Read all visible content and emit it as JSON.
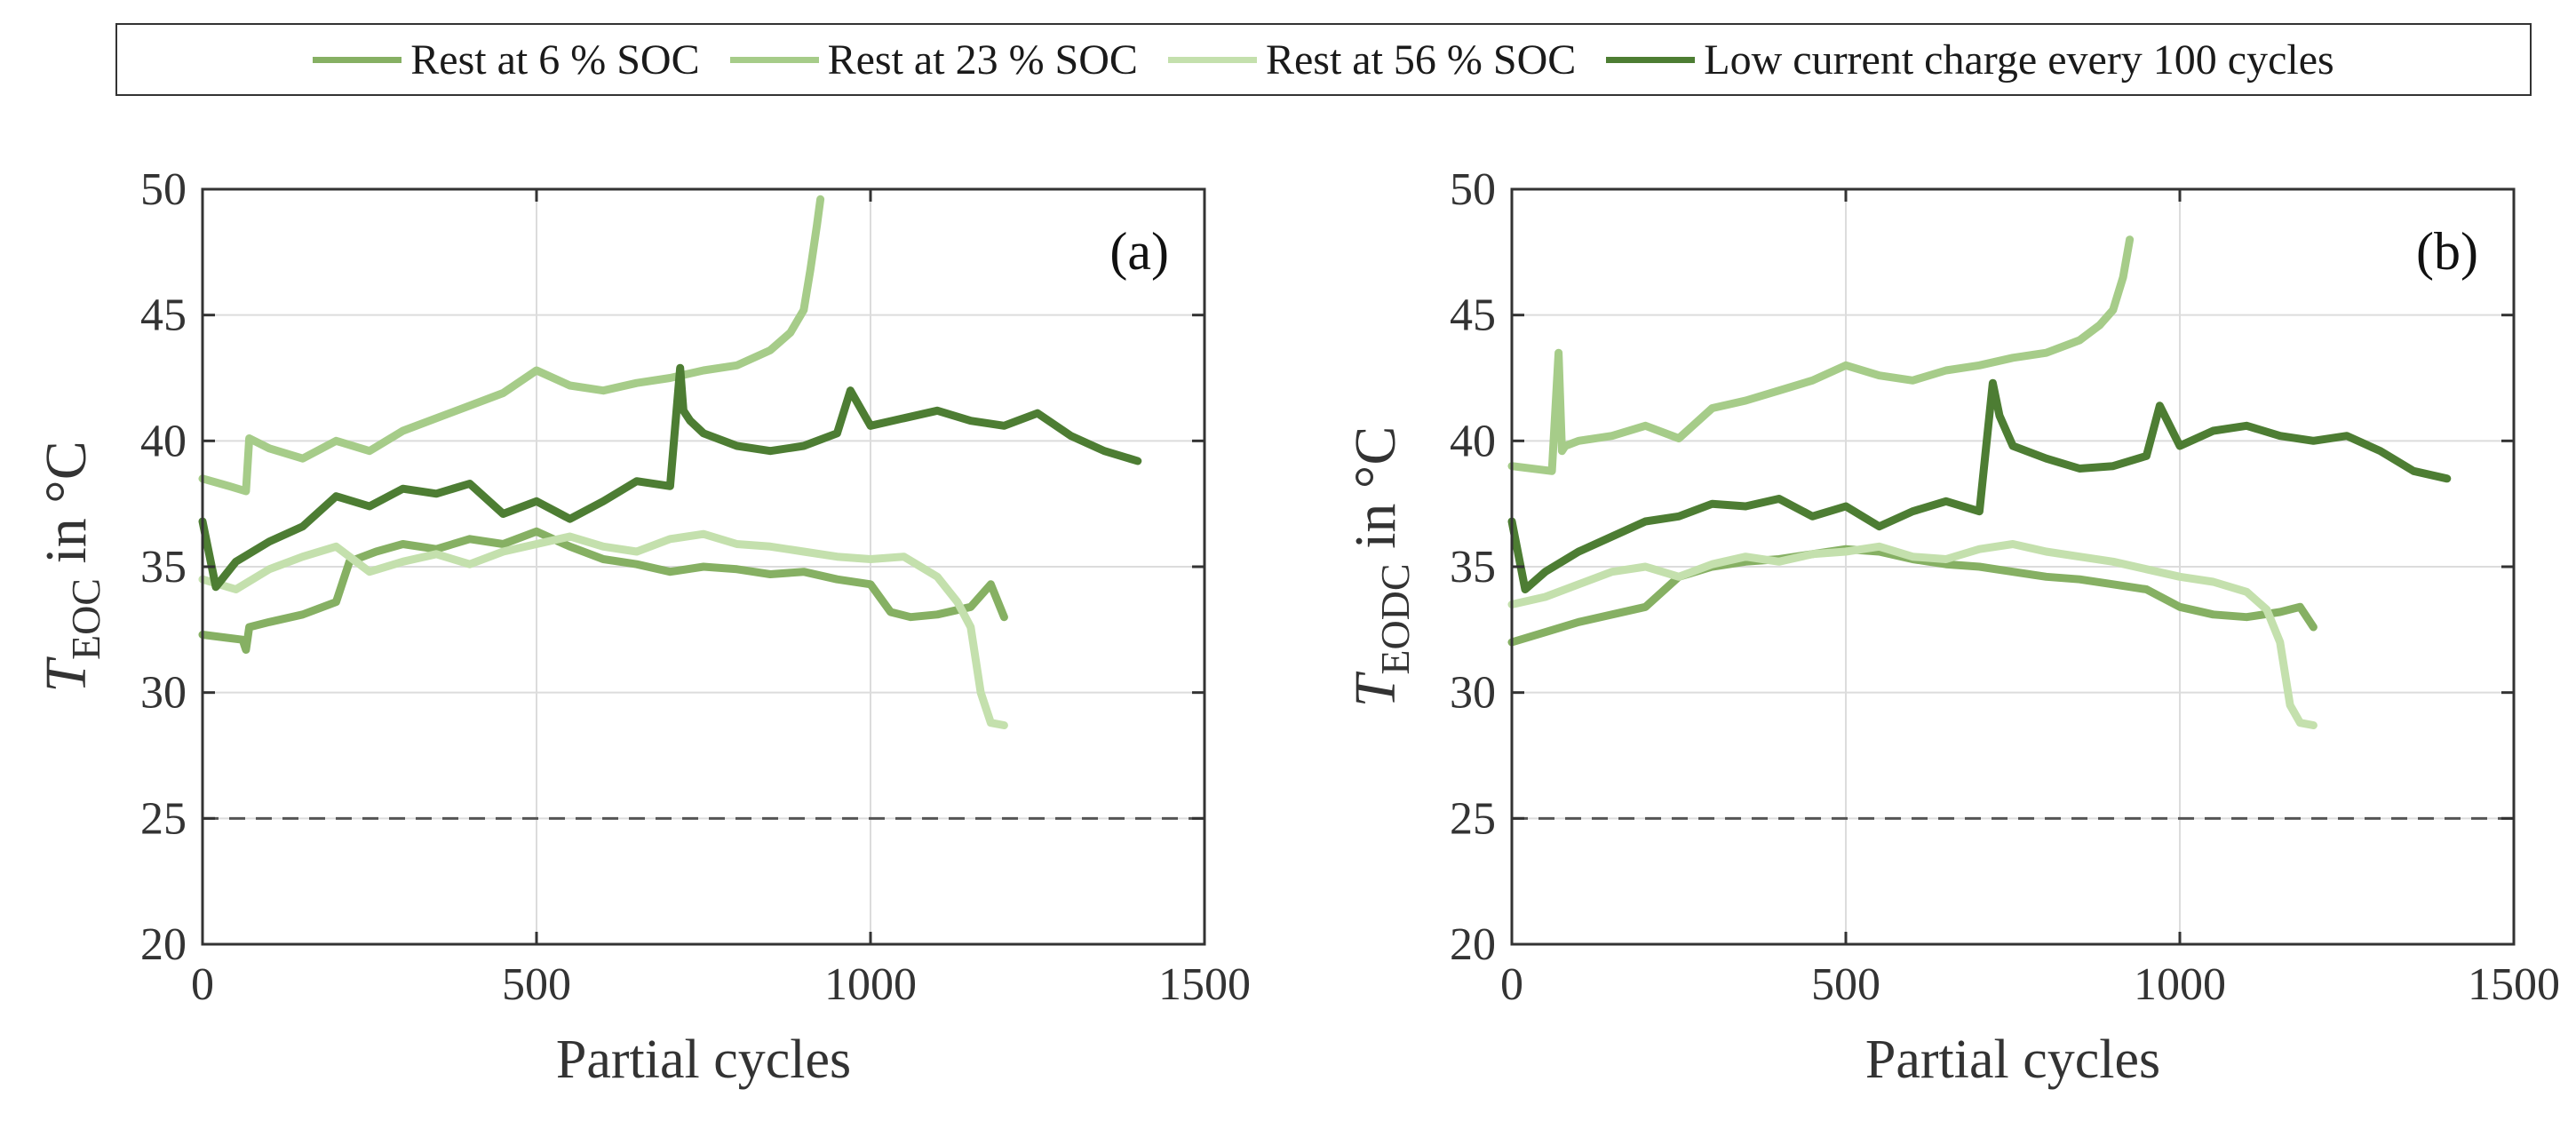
{
  "legend": {
    "items": [
      {
        "label": "Rest at 6 % SOC",
        "color": "#86b063"
      },
      {
        "label": "Rest at 23 % SOC",
        "color": "#a6cc89"
      },
      {
        "label": "Rest at 56 % SOC",
        "color": "#c4e0ad"
      },
      {
        "label": "Low current charge every 100 cycles",
        "color": "#4d7d33"
      }
    ]
  },
  "chart_data": [
    {
      "type": "line",
      "panel_label": "(a)",
      "ylabel_main": "T",
      "ylabel_sub": "EOC",
      "ylabel_rest": " in °C",
      "xlabel": "Partial cycles",
      "xlim": [
        0,
        1500
      ],
      "ylim": [
        20,
        50
      ],
      "xticks": [
        0,
        500,
        1000,
        1500
      ],
      "yticks": [
        20,
        25,
        30,
        35,
        40,
        45,
        50
      ],
      "grid": true,
      "reference_line": {
        "y": 25,
        "style": "dashed"
      },
      "series": [
        {
          "name": "Rest at 6 % SOC",
          "color": "#86b063",
          "x": [
            0,
            60,
            65,
            70,
            100,
            150,
            200,
            220,
            260,
            300,
            350,
            400,
            450,
            500,
            550,
            600,
            650,
            700,
            750,
            800,
            850,
            900,
            950,
            1000,
            1030,
            1060,
            1100,
            1150,
            1180,
            1200
          ],
          "y": [
            32.3,
            32.1,
            31.7,
            32.6,
            32.8,
            33.1,
            33.6,
            35.2,
            35.6,
            35.9,
            35.7,
            36.1,
            35.9,
            36.4,
            35.8,
            35.3,
            35.1,
            34.8,
            35.0,
            34.9,
            34.7,
            34.8,
            34.5,
            34.3,
            33.2,
            33.0,
            33.1,
            33.4,
            34.3,
            33.0
          ]
        },
        {
          "name": "Rest at 23 % SOC",
          "color": "#a6cc89",
          "x": [
            0,
            40,
            65,
            70,
            100,
            150,
            200,
            250,
            300,
            350,
            400,
            450,
            500,
            550,
            600,
            650,
            700,
            750,
            800,
            850,
            880,
            900,
            910,
            920,
            925
          ],
          "y": [
            38.5,
            38.2,
            38.0,
            40.1,
            39.7,
            39.3,
            40.0,
            39.6,
            40.4,
            40.9,
            41.4,
            41.9,
            42.8,
            42.2,
            42.0,
            42.3,
            42.5,
            42.8,
            43.0,
            43.6,
            44.3,
            45.2,
            46.8,
            48.6,
            49.6
          ]
        },
        {
          "name": "Rest at 56 % SOC",
          "color": "#c4e0ad",
          "x": [
            0,
            50,
            100,
            150,
            200,
            250,
            300,
            350,
            400,
            450,
            500,
            550,
            600,
            650,
            700,
            750,
            800,
            850,
            900,
            950,
            1000,
            1050,
            1100,
            1130,
            1150,
            1165,
            1180,
            1200
          ],
          "y": [
            34.5,
            34.1,
            34.9,
            35.4,
            35.8,
            34.8,
            35.2,
            35.5,
            35.1,
            35.6,
            35.9,
            36.2,
            35.8,
            35.6,
            36.1,
            36.3,
            35.9,
            35.8,
            35.6,
            35.4,
            35.3,
            35.4,
            34.6,
            33.6,
            32.6,
            30.0,
            28.8,
            28.7
          ]
        },
        {
          "name": "Low current charge every 100 cycles",
          "color": "#4d7d33",
          "x": [
            0,
            20,
            50,
            100,
            150,
            200,
            250,
            300,
            350,
            400,
            450,
            500,
            550,
            600,
            650,
            700,
            715,
            720,
            730,
            750,
            800,
            850,
            900,
            950,
            970,
            1000,
            1050,
            1100,
            1150,
            1200,
            1250,
            1300,
            1350,
            1400
          ],
          "y": [
            36.8,
            34.2,
            35.2,
            36.0,
            36.6,
            37.8,
            37.4,
            38.1,
            37.9,
            38.3,
            37.1,
            37.6,
            36.9,
            37.6,
            38.4,
            38.2,
            42.9,
            41.2,
            40.8,
            40.3,
            39.8,
            39.6,
            39.8,
            40.3,
            42.0,
            40.6,
            40.9,
            41.2,
            40.8,
            40.6,
            41.1,
            40.2,
            39.6,
            39.2
          ]
        }
      ]
    },
    {
      "type": "line",
      "panel_label": "(b)",
      "ylabel_main": "T",
      "ylabel_sub": "EODC",
      "ylabel_rest": " in °C",
      "xlabel": "Partial cycles",
      "xlim": [
        0,
        1500
      ],
      "ylim": [
        20,
        50
      ],
      "xticks": [
        0,
        500,
        1000,
        1500
      ],
      "yticks": [
        20,
        25,
        30,
        35,
        40,
        45,
        50
      ],
      "grid": true,
      "reference_line": {
        "y": 25,
        "style": "dashed"
      },
      "series": [
        {
          "name": "Rest at 6 % SOC",
          "color": "#86b063",
          "x": [
            0,
            50,
            100,
            150,
            200,
            250,
            300,
            350,
            400,
            450,
            500,
            550,
            600,
            650,
            700,
            750,
            800,
            850,
            900,
            950,
            1000,
            1050,
            1100,
            1150,
            1180,
            1200
          ],
          "y": [
            32.0,
            32.4,
            32.8,
            33.1,
            33.4,
            34.6,
            35.0,
            35.2,
            35.3,
            35.5,
            35.7,
            35.6,
            35.3,
            35.1,
            35.0,
            34.8,
            34.6,
            34.5,
            34.3,
            34.1,
            33.4,
            33.1,
            33.0,
            33.2,
            33.4,
            32.6
          ]
        },
        {
          "name": "Rest at 23 % SOC",
          "color": "#a6cc89",
          "x": [
            0,
            60,
            70,
            75,
            80,
            100,
            150,
            200,
            250,
            300,
            350,
            400,
            450,
            500,
            550,
            600,
            650,
            700,
            750,
            800,
            850,
            880,
            900,
            915,
            925
          ],
          "y": [
            39.0,
            38.8,
            43.5,
            39.6,
            39.8,
            40.0,
            40.2,
            40.6,
            40.1,
            41.3,
            41.6,
            42.0,
            42.4,
            43.0,
            42.6,
            42.4,
            42.8,
            43.0,
            43.3,
            43.5,
            44.0,
            44.6,
            45.2,
            46.5,
            48.0
          ]
        },
        {
          "name": "Rest at 56 % SOC",
          "color": "#c4e0ad",
          "x": [
            0,
            50,
            100,
            150,
            200,
            250,
            300,
            350,
            400,
            450,
            500,
            550,
            600,
            650,
            700,
            750,
            800,
            850,
            900,
            950,
            1000,
            1050,
            1100,
            1130,
            1150,
            1165,
            1180,
            1200
          ],
          "y": [
            33.5,
            33.8,
            34.3,
            34.8,
            35.0,
            34.6,
            35.1,
            35.4,
            35.2,
            35.5,
            35.6,
            35.8,
            35.4,
            35.3,
            35.7,
            35.9,
            35.6,
            35.4,
            35.2,
            34.9,
            34.6,
            34.4,
            34.0,
            33.3,
            32.0,
            29.5,
            28.8,
            28.7
          ]
        },
        {
          "name": "Low current charge every 100 cycles",
          "color": "#4d7d33",
          "x": [
            0,
            20,
            50,
            100,
            150,
            200,
            250,
            300,
            350,
            400,
            450,
            500,
            550,
            600,
            650,
            700,
            720,
            730,
            750,
            800,
            850,
            900,
            950,
            970,
            1000,
            1050,
            1100,
            1150,
            1200,
            1250,
            1300,
            1350,
            1400
          ],
          "y": [
            36.8,
            34.1,
            34.8,
            35.6,
            36.2,
            36.8,
            37.0,
            37.5,
            37.4,
            37.7,
            37.0,
            37.4,
            36.6,
            37.2,
            37.6,
            37.2,
            42.3,
            41.0,
            39.8,
            39.3,
            38.9,
            39.0,
            39.4,
            41.4,
            39.8,
            40.4,
            40.6,
            40.2,
            40.0,
            40.2,
            39.6,
            38.8,
            38.5
          ]
        }
      ]
    }
  ]
}
